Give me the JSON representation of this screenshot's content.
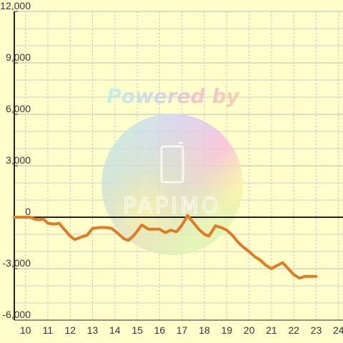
{
  "chart_data": {
    "type": "line",
    "xlim": [
      9.5,
      24.2
    ],
    "ylim": [
      -6000,
      12000
    ],
    "x_ticks": [
      10,
      11,
      12,
      13,
      14,
      15,
      16,
      17,
      18,
      19,
      20,
      21,
      22,
      23,
      24
    ],
    "x_tick_labels": [
      "10",
      "11",
      "12",
      "13",
      "14",
      "15",
      "16",
      "17",
      "18",
      "19",
      "20",
      "21",
      "22",
      "23",
      "24"
    ],
    "y_ticks": [
      -6000,
      -3000,
      0,
      3000,
      6000,
      9000,
      12000
    ],
    "y_tick_labels": [
      "-6,000",
      "-3,000",
      "0",
      "3,000",
      "6,000",
      "9,000",
      "12,000"
    ],
    "grid": true,
    "x": [
      9.5,
      9.8,
      10.0,
      10.2,
      10.4,
      10.6,
      10.8,
      11.0,
      11.3,
      11.5,
      11.8,
      12.0,
      12.2,
      12.5,
      12.75,
      13.0,
      13.3,
      13.6,
      13.85,
      14.1,
      14.4,
      14.6,
      14.85,
      15.0,
      15.2,
      15.5,
      15.75,
      16.0,
      16.25,
      16.5,
      16.75,
      17.0,
      17.25,
      17.5,
      17.75,
      18.0,
      18.2,
      18.5,
      18.75,
      19.0,
      19.25,
      19.5,
      19.75,
      20.0,
      20.25,
      20.5,
      20.75,
      21.0,
      21.2,
      21.5,
      21.75,
      22.0,
      22.25,
      22.5,
      22.75,
      23.0
    ],
    "y": [
      0,
      0,
      0,
      0,
      -100,
      -150,
      -100,
      -350,
      -400,
      -350,
      -800,
      -1100,
      -1300,
      -1150,
      -1050,
      -650,
      -600,
      -600,
      -650,
      -900,
      -1250,
      -1350,
      -1050,
      -800,
      -450,
      -700,
      -700,
      -700,
      -900,
      -750,
      -850,
      -450,
      100,
      -300,
      -700,
      -1000,
      -1100,
      -500,
      -600,
      -750,
      -1050,
      -1450,
      -1750,
      -2000,
      -2300,
      -2500,
      -2800,
      -3000,
      -2850,
      -2650,
      -3000,
      -3350,
      -3550,
      -3450,
      -3450,
      -3450
    ],
    "series_color": "#e07b24",
    "watermark": {
      "text": "Powered by",
      "logo": "PAPIMO"
    }
  }
}
